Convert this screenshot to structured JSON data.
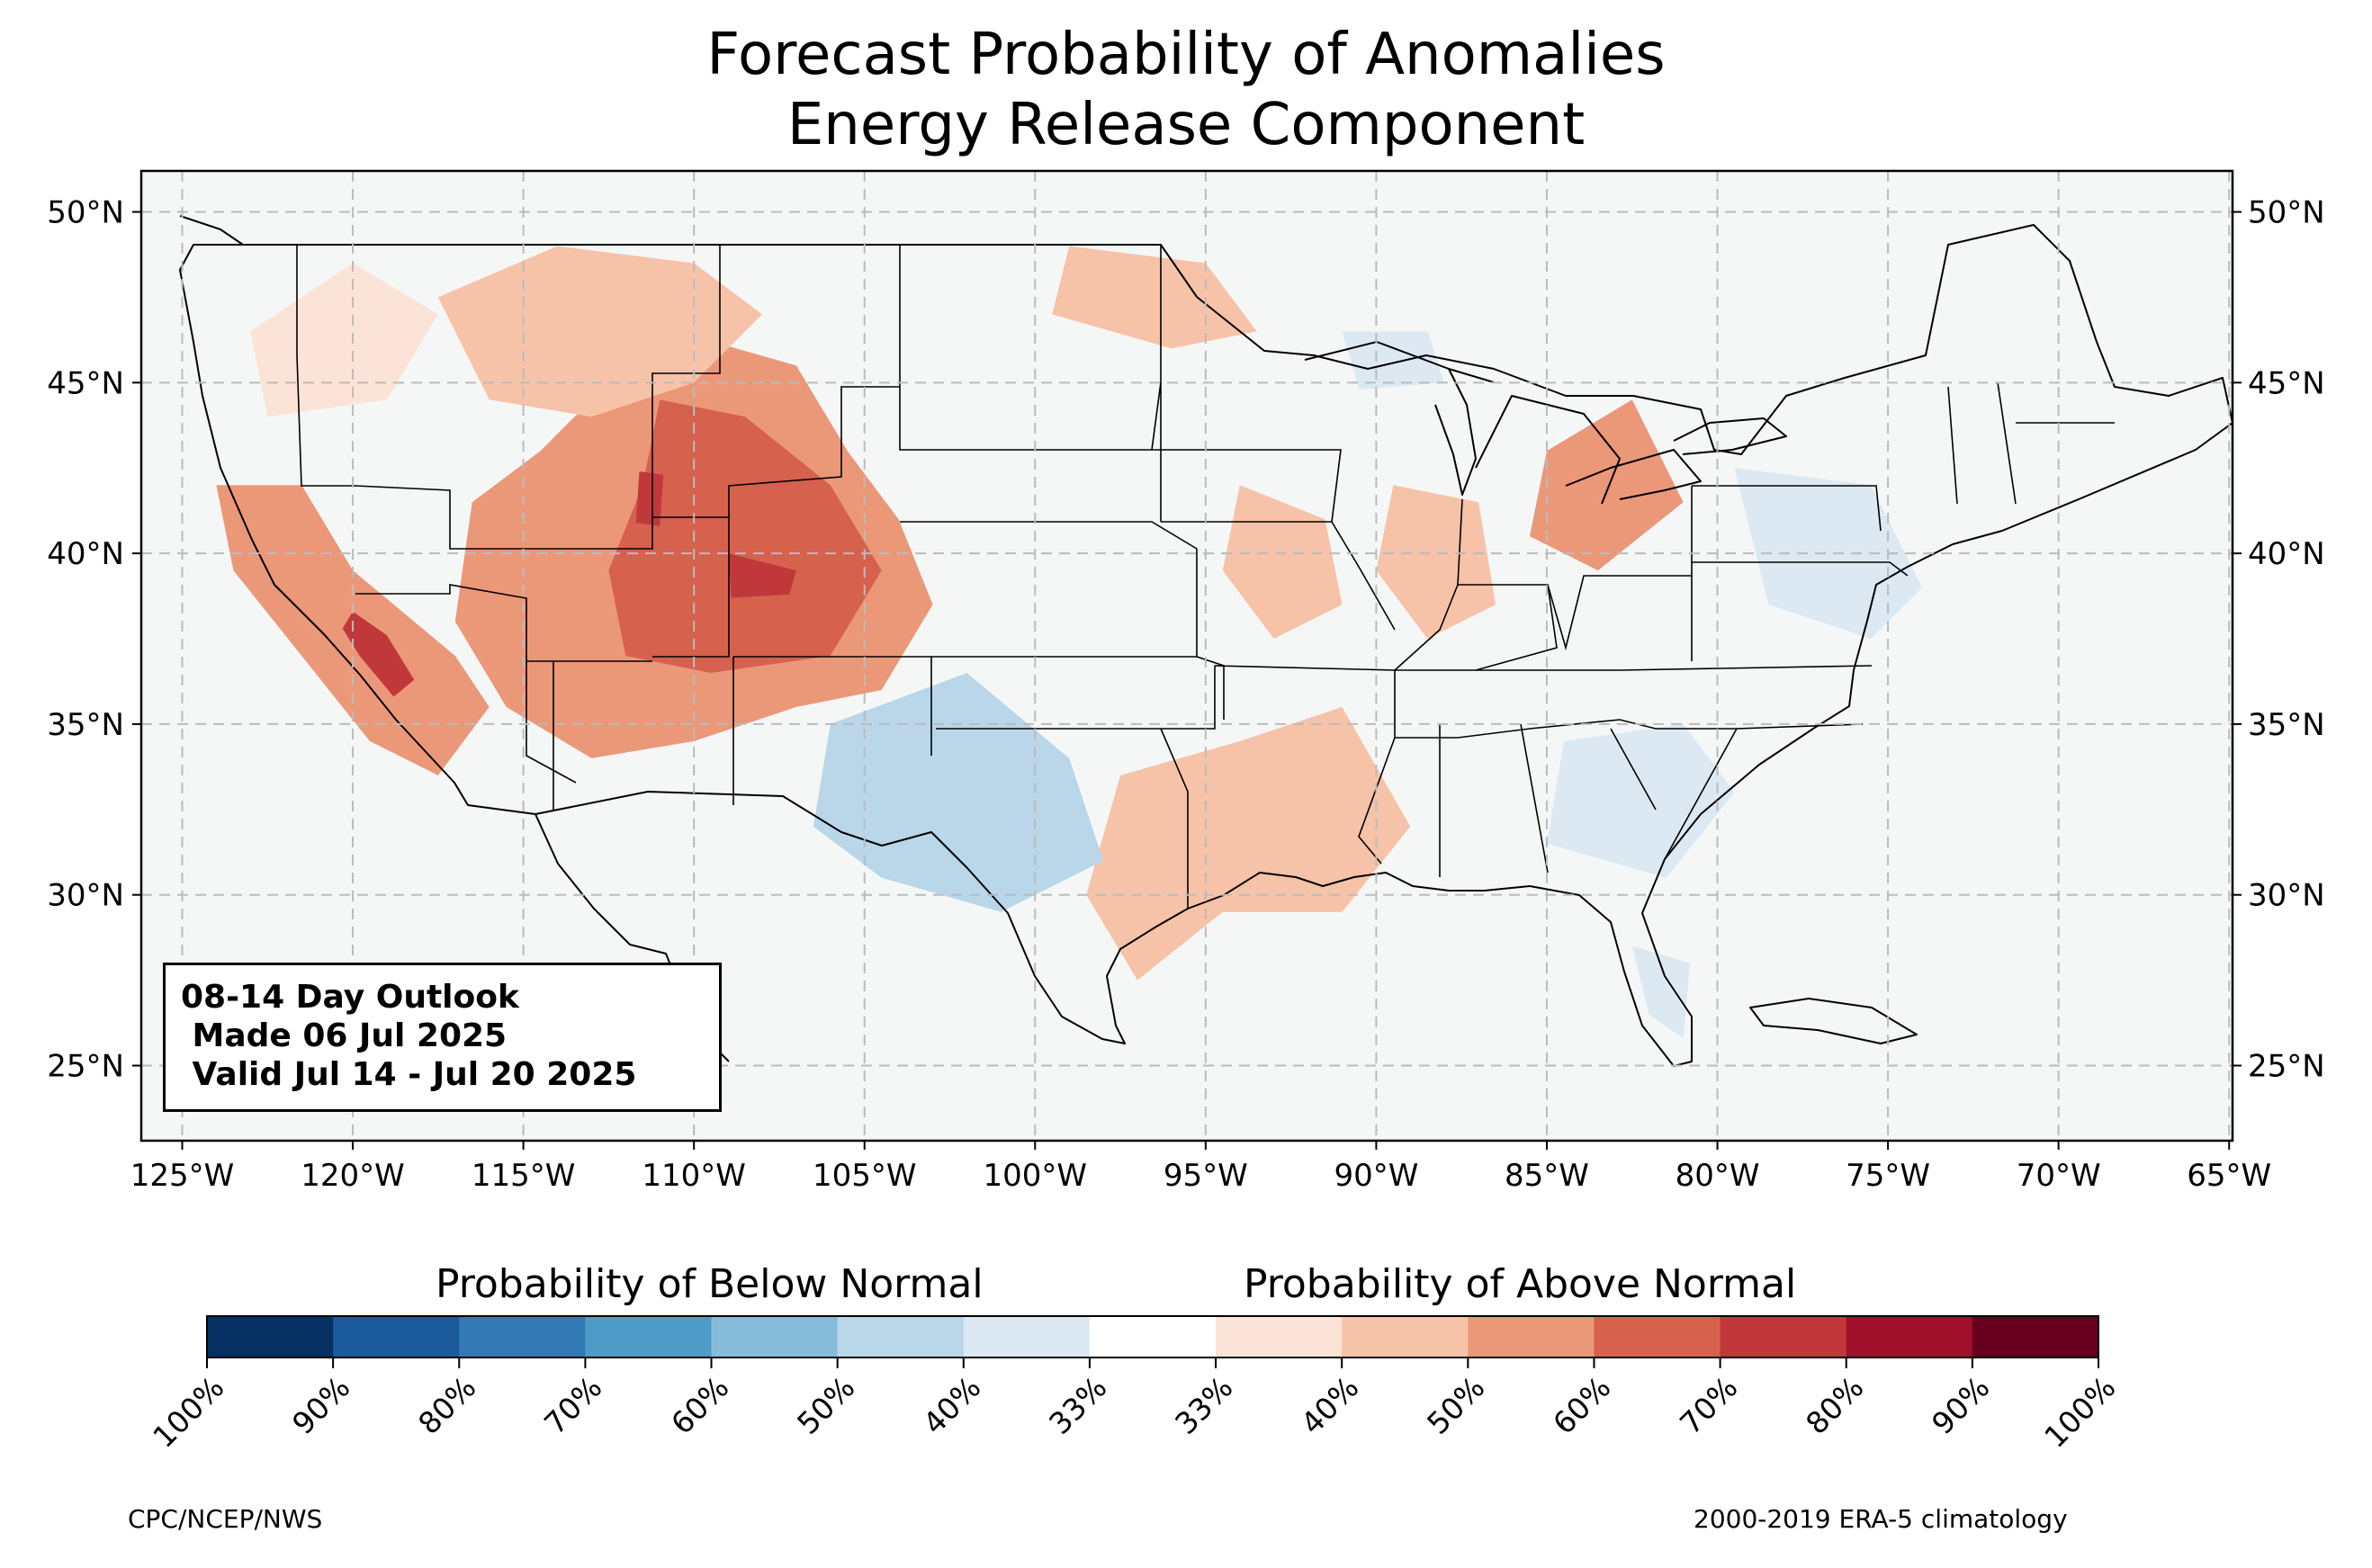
{
  "title": {
    "line1": "Forecast Probability of Anomalies",
    "line2": "Energy Release Component"
  },
  "map": {
    "projection": "plate-carree",
    "lon_range": [
      -126.2,
      -64.9
    ],
    "lat_range": [
      22.8,
      51.2
    ],
    "background_color": "#f5f7f7",
    "border_color": "#000000",
    "grid": true,
    "lat_labels": [
      "50°N",
      "45°N",
      "40°N",
      "35°N",
      "30°N",
      "25°N"
    ],
    "lat_values": [
      50,
      45,
      40,
      35,
      30,
      25
    ],
    "lon_labels": [
      "125°W",
      "120°W",
      "115°W",
      "110°W",
      "105°W",
      "100°W",
      "95°W",
      "90°W",
      "85°W",
      "80°W",
      "75°W",
      "70°W",
      "65°W"
    ],
    "lon_values": [
      -125,
      -120,
      -115,
      -110,
      -105,
      -100,
      -95,
      -90,
      -85,
      -80,
      -75,
      -70,
      -65
    ],
    "anomaly_regions": [
      {
        "region": "Great Basin / Colorado Plateau / Central Rockies",
        "category": "above",
        "probability": "50-60%",
        "points": [
          [
            -113.5,
            44.0
          ],
          [
            -110.5,
            46.5
          ],
          [
            -107.0,
            45.5
          ],
          [
            -105.5,
            43.0
          ],
          [
            -104.0,
            41.0
          ],
          [
            -103.0,
            38.5
          ],
          [
            -104.5,
            36.0
          ],
          [
            -107.0,
            35.5
          ],
          [
            -110.0,
            34.5
          ],
          [
            -113.0,
            34.0
          ],
          [
            -115.5,
            35.5
          ],
          [
            -117.0,
            38.0
          ],
          [
            -116.5,
            41.5
          ],
          [
            -114.5,
            43.0
          ]
        ]
      },
      {
        "region": "Southern Wyoming / Colorado core",
        "category": "above",
        "probability": "60-70%",
        "points": [
          [
            -111.0,
            44.5
          ],
          [
            -108.5,
            44.0
          ],
          [
            -106.0,
            42.0
          ],
          [
            -104.5,
            39.5
          ],
          [
            -106.0,
            37.0
          ],
          [
            -109.5,
            36.5
          ],
          [
            -112.0,
            37.0
          ],
          [
            -112.5,
            39.5
          ],
          [
            -111.5,
            42.0
          ]
        ]
      },
      {
        "region": "Colorado",
        "category": "above",
        "probability": "70-80%",
        "points": [
          [
            -109.0,
            40.0
          ],
          [
            -107.0,
            39.5
          ],
          [
            -107.2,
            38.8
          ],
          [
            -108.9,
            38.7
          ]
        ]
      },
      {
        "region": "Northern Utah",
        "category": "above",
        "probability": "70-80%",
        "points": [
          [
            -111.6,
            42.4
          ],
          [
            -110.9,
            42.3
          ],
          [
            -111.0,
            40.8
          ],
          [
            -111.7,
            40.9
          ]
        ]
      },
      {
        "region": "California / Nevada",
        "category": "above",
        "probability": "50-60%",
        "points": [
          [
            -124.0,
            42.0
          ],
          [
            -121.5,
            42.0
          ],
          [
            -120.0,
            39.5
          ],
          [
            -117.0,
            37.0
          ],
          [
            -116.0,
            35.5
          ],
          [
            -117.5,
            33.5
          ],
          [
            -119.5,
            34.5
          ],
          [
            -121.5,
            37.0
          ],
          [
            -123.5,
            39.5
          ]
        ]
      },
      {
        "region": "Sierra Nevada",
        "category": "above",
        "probability": "70-80%",
        "points": [
          [
            -120.0,
            38.3
          ],
          [
            -119.0,
            37.6
          ],
          [
            -118.2,
            36.3
          ],
          [
            -118.8,
            35.8
          ],
          [
            -119.8,
            37.0
          ],
          [
            -120.3,
            37.8
          ]
        ]
      },
      {
        "region": "Idaho / Montana",
        "category": "above",
        "probability": "40-50%",
        "points": [
          [
            -117.5,
            47.5
          ],
          [
            -114.0,
            49.0
          ],
          [
            -110.0,
            48.5
          ],
          [
            -108.0,
            47.0
          ],
          [
            -110.0,
            45.0
          ],
          [
            -113.0,
            44.0
          ],
          [
            -116.0,
            44.5
          ]
        ]
      },
      {
        "region": "Pacific Northwest",
        "category": "above",
        "probability": "33-40%",
        "points": [
          [
            -123.0,
            46.5
          ],
          [
            -120.0,
            48.5
          ],
          [
            -117.5,
            47.0
          ],
          [
            -119.0,
            44.5
          ],
          [
            -122.5,
            44.0
          ]
        ]
      },
      {
        "region": "North Dakota / Minnesota",
        "category": "above",
        "probability": "40-50%",
        "points": [
          [
            -99.0,
            49.0
          ],
          [
            -95.0,
            48.5
          ],
          [
            -93.5,
            46.5
          ],
          [
            -96.0,
            46.0
          ],
          [
            -99.5,
            47.0
          ]
        ]
      },
      {
        "region": "Missouri / Iowa",
        "category": "above",
        "probability": "40-50%",
        "points": [
          [
            -94.0,
            42.0
          ],
          [
            -91.5,
            41.0
          ],
          [
            -91.0,
            38.5
          ],
          [
            -93.0,
            37.5
          ],
          [
            -94.5,
            39.5
          ]
        ]
      },
      {
        "region": "Illinois / Indiana",
        "category": "above",
        "probability": "40-50%",
        "points": [
          [
            -89.5,
            42.0
          ],
          [
            -87.0,
            41.5
          ],
          [
            -86.5,
            38.5
          ],
          [
            -88.5,
            37.5
          ],
          [
            -90.0,
            39.5
          ]
        ]
      },
      {
        "region": "Ohio / Michigan",
        "category": "above",
        "probability": "50-60%",
        "points": [
          [
            -85.0,
            43.0
          ],
          [
            -82.5,
            44.5
          ],
          [
            -81.0,
            41.5
          ],
          [
            -83.5,
            39.5
          ],
          [
            -85.5,
            40.5
          ]
        ]
      },
      {
        "region": "East Texas / Louisiana / Arkansas",
        "category": "above",
        "probability": "40-50%",
        "points": [
          [
            -97.5,
            33.5
          ],
          [
            -94.0,
            34.5
          ],
          [
            -91.0,
            35.5
          ],
          [
            -89.0,
            32.0
          ],
          [
            -91.0,
            29.5
          ],
          [
            -94.5,
            29.5
          ],
          [
            -97.0,
            27.5
          ],
          [
            -98.5,
            30.0
          ]
        ]
      },
      {
        "region": "Southern High Plains / West Texas",
        "category": "below",
        "probability": "40-50%",
        "points": [
          [
            -106.0,
            35.0
          ],
          [
            -102.0,
            36.5
          ],
          [
            -99.0,
            34.0
          ],
          [
            -98.0,
            31.0
          ],
          [
            -101.0,
            29.5
          ],
          [
            -104.5,
            30.5
          ],
          [
            -106.5,
            32.0
          ]
        ]
      },
      {
        "region": "Mid-Atlantic",
        "category": "below",
        "probability": "33-40%",
        "points": [
          [
            -79.5,
            42.5
          ],
          [
            -75.5,
            42.0
          ],
          [
            -74.0,
            39.0
          ],
          [
            -75.5,
            37.5
          ],
          [
            -78.5,
            38.5
          ]
        ]
      },
      {
        "region": "Georgia / South Carolina",
        "category": "below",
        "probability": "33-40%",
        "points": [
          [
            -84.5,
            34.5
          ],
          [
            -81.0,
            35.0
          ],
          [
            -79.5,
            33.0
          ],
          [
            -81.5,
            30.5
          ],
          [
            -85.0,
            31.5
          ]
        ]
      },
      {
        "region": "Florida Peninsula",
        "category": "below",
        "probability": "33-40%",
        "points": [
          [
            -82.5,
            28.5
          ],
          [
            -80.8,
            28.0
          ],
          [
            -81.0,
            25.8
          ],
          [
            -82.0,
            26.5
          ]
        ]
      },
      {
        "region": "Northern Wisconsin",
        "category": "below",
        "probability": "33-40%",
        "points": [
          [
            -91.0,
            46.5
          ],
          [
            -88.5,
            46.5
          ],
          [
            -88.0,
            45.0
          ],
          [
            -90.5,
            44.8
          ]
        ]
      }
    ]
  },
  "outlook_box": {
    "line1": "08-14 Day Outlook",
    "line2": " Made 06 Jul 2025",
    "line3": " Valid Jul 14 - Jul 20 2025"
  },
  "colorbar": {
    "below_label": "Probability of Below Normal",
    "above_label": "Probability of Above Normal",
    "tick_labels": [
      "100%",
      "90%",
      "80%",
      "70%",
      "60%",
      "50%",
      "40%",
      "33%",
      "33%",
      "40%",
      "50%",
      "60%",
      "70%",
      "80%",
      "90%",
      "100%"
    ],
    "bins": [
      {
        "category": "below",
        "range": "90-100%",
        "color": "#053061"
      },
      {
        "category": "below",
        "range": "80-90%",
        "color": "#1b5a9c"
      },
      {
        "category": "below",
        "range": "70-80%",
        "color": "#3379b4"
      },
      {
        "category": "below",
        "range": "60-70%",
        "color": "#4f9bc7"
      },
      {
        "category": "below",
        "range": "50-60%",
        "color": "#86bcda"
      },
      {
        "category": "below",
        "range": "40-50%",
        "color": "#b9d7e9"
      },
      {
        "category": "below",
        "range": "33-40%",
        "color": "#dce9f2"
      },
      {
        "category": "normal",
        "range": "",
        "color": "#ffffff"
      },
      {
        "category": "above",
        "range": "33-40%",
        "color": "#fbe3d7"
      },
      {
        "category": "above",
        "range": "40-50%",
        "color": "#f6c3a8"
      },
      {
        "category": "above",
        "range": "50-60%",
        "color": "#eb9879"
      },
      {
        "category": "above",
        "range": "60-70%",
        "color": "#d6614d"
      },
      {
        "category": "above",
        "range": "70-80%",
        "color": "#c1383b"
      },
      {
        "category": "above",
        "range": "80-90%",
        "color": "#a0102a"
      },
      {
        "category": "above",
        "range": "90-100%",
        "color": "#67001f"
      }
    ]
  },
  "credits": {
    "left": "CPC/NCEP/NWS",
    "right": "2000-2019 ERA-5 climatology"
  }
}
